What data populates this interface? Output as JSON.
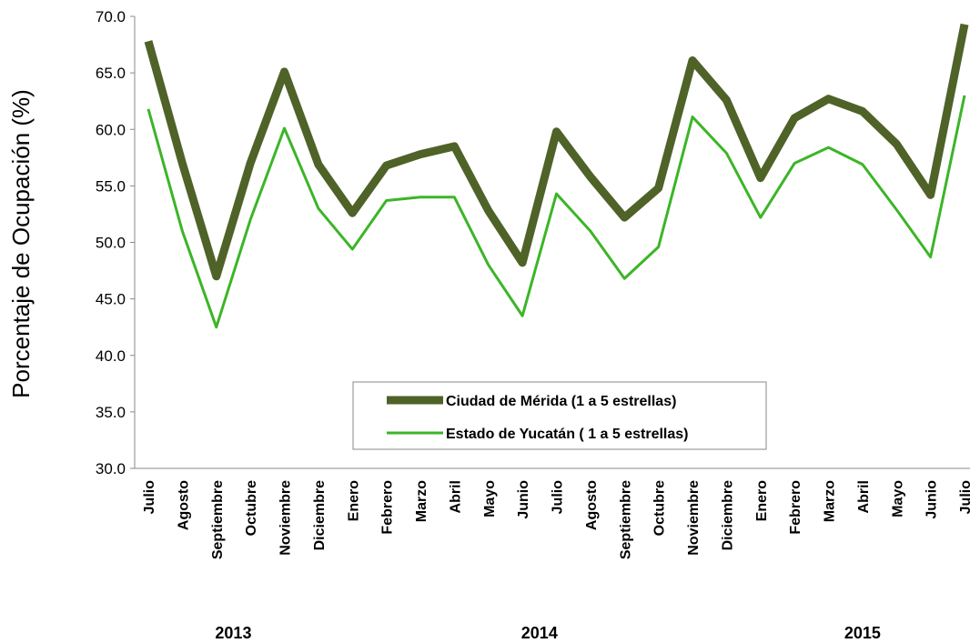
{
  "chart_data": {
    "type": "line",
    "y_axis_label": "Porcentaje de Ocupación (%)",
    "categories": [
      "Julio",
      "Agosto",
      "Septiembre",
      "Octubre",
      "Noviembre",
      "Diciembre",
      "Enero",
      "Febrero",
      "Marzo",
      "Abril",
      "Mayo",
      "Junio",
      "Julio",
      "Agosto",
      "Septiembre",
      "Octubre",
      "Noviembre",
      "Diciembre",
      "Enero",
      "Febrero",
      "Marzo",
      "Abril",
      "Mayo",
      "Junio",
      "Julio"
    ],
    "year_labels": [
      "2013",
      "2014",
      "2015"
    ],
    "series": [
      {
        "name": "Ciudad de Mérida (1 a 5 estrellas)",
        "color": "#4f6228",
        "values": [
          67.8,
          57.0,
          47.0,
          57.0,
          65.1,
          56.9,
          52.6,
          56.8,
          57.8,
          58.5,
          52.8,
          48.2,
          59.8,
          55.8,
          52.2,
          54.8,
          66.1,
          62.6,
          55.7,
          61.0,
          62.7,
          61.6,
          58.7,
          54.2,
          69.3
        ]
      },
      {
        "name": "Estado de Yucatán ( 1 a 5 estrellas)",
        "color": "#3cb527",
        "values": [
          61.8,
          51.0,
          42.5,
          52.0,
          60.1,
          53.0,
          49.4,
          53.7,
          54.0,
          54.0,
          48.0,
          43.5,
          54.3,
          51.0,
          46.8,
          49.6,
          61.1,
          57.9,
          52.2,
          57.0,
          58.4,
          56.9,
          52.9,
          48.7,
          63.0
        ]
      }
    ],
    "ylim": [
      30,
      70
    ],
    "yticks": [
      {
        "value": 30,
        "label": "30.0"
      },
      {
        "value": 35,
        "label": "35.0"
      },
      {
        "value": 40,
        "label": "40.0"
      },
      {
        "value": 45,
        "label": "45.0"
      },
      {
        "value": 50,
        "label": "50.0"
      },
      {
        "value": 55,
        "label": "55.0"
      },
      {
        "value": 60,
        "label": "60.0"
      },
      {
        "value": 65,
        "label": "65.0"
      },
      {
        "value": 70,
        "label": "70.0"
      }
    ]
  }
}
